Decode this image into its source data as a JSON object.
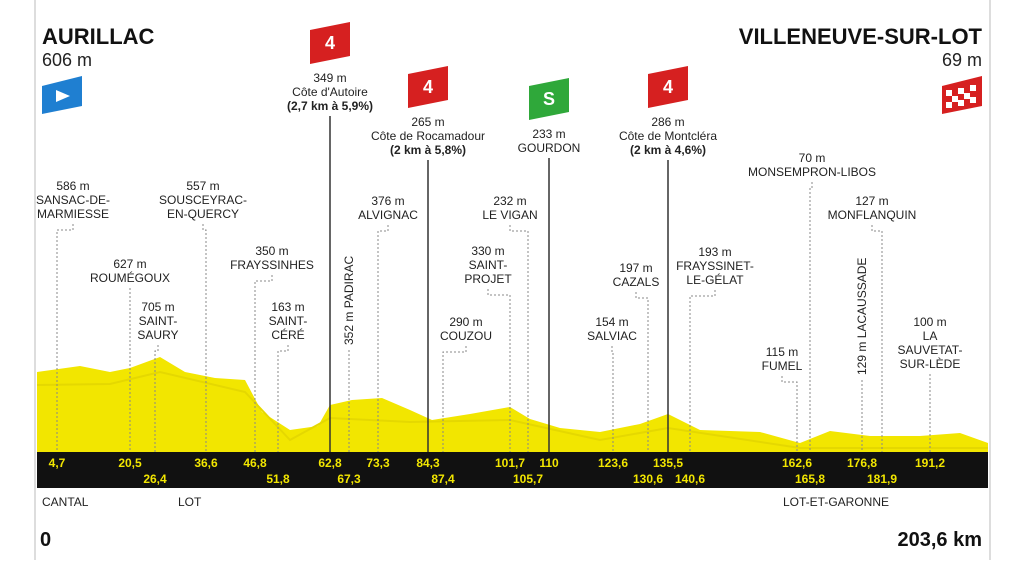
{
  "start": {
    "name": "AURILLAC",
    "elevation": "606 m",
    "km": "0",
    "region": "CANTAL"
  },
  "finish": {
    "name": "VILLENEUVE-SUR-LOT",
    "elevation": "69 m",
    "km": "203,6 km"
  },
  "regions": [
    "LOT",
    "LOT-ET-GARONNE"
  ],
  "waypoints": [
    {
      "km": "4,7",
      "elevation": "586 m",
      "name": [
        "SANSAC-DE-",
        "MARMIESSE"
      ]
    },
    {
      "km": "20,5",
      "elevation": "627 m",
      "name": [
        "ROUMÉGOUX"
      ]
    },
    {
      "km": "26,4",
      "elevation": "705 m",
      "name": [
        "SAINT-",
        "SAURY"
      ]
    },
    {
      "km": "36,6",
      "elevation": "557 m",
      "name": [
        "SOUSCEYRAC-",
        "EN-QUERCY"
      ]
    },
    {
      "km": "46,8",
      "elevation": "350 m",
      "name": [
        "FRAYSSINHES"
      ]
    },
    {
      "km": "51,8",
      "elevation": "163 m",
      "name": [
        "SAINT-",
        "CÉRÉ"
      ]
    },
    {
      "km": "62,8",
      "elevation": "349 m",
      "name": [
        "Côte d'Autoire"
      ],
      "detail": "(2,7 km à 5,9%)",
      "badge": "4"
    },
    {
      "km": "67,3",
      "elevation": "352 m",
      "name": [
        "PADIRAC"
      ]
    },
    {
      "km": "73,3",
      "elevation": "376 m",
      "name": [
        "ALVIGNAC"
      ]
    },
    {
      "km": "84,3",
      "elevation": "265 m",
      "name": [
        "Côte de Rocamadour"
      ],
      "detail": "(2 km à 5,8%)",
      "badge": "4"
    },
    {
      "km": "87,4",
      "elevation": "290 m",
      "name": [
        "COUZOU"
      ]
    },
    {
      "km": "101,7",
      "elevation": "330 m",
      "name": [
        "SAINT-",
        "PROJET"
      ]
    },
    {
      "km": "105,7",
      "elevation": "232 m",
      "name": [
        "LE VIGAN"
      ]
    },
    {
      "km": "110",
      "elevation": "233 m",
      "name": [
        "GOURDON"
      ],
      "badge": "S"
    },
    {
      "km": "123,6",
      "elevation": "154 m",
      "name": [
        "SALVIAC"
      ]
    },
    {
      "km": "130,6",
      "elevation": "197 m",
      "name": [
        "CAZALS"
      ]
    },
    {
      "km": "135,5",
      "elevation": "286 m",
      "name": [
        "Côte de Montcléra"
      ],
      "detail": "(2 km à 4,6%)",
      "badge": "4"
    },
    {
      "km": "140,6",
      "elevation": "193 m",
      "name": [
        "FRAYSSINET-",
        "LE-GÉLAT"
      ]
    },
    {
      "km": "162,6",
      "elevation": "115 m",
      "name": [
        "FUMEL"
      ]
    },
    {
      "km": "165,8",
      "elevation": "70 m",
      "name": [
        "MONSEMPRON-LIBOS"
      ]
    },
    {
      "km": "176,8",
      "elevation": "129 m",
      "name": [
        "LACAUSSADE"
      ]
    },
    {
      "km": "181,9",
      "elevation": "127 m",
      "name": [
        "MONFLANQUIN"
      ]
    },
    {
      "km": "191,2",
      "elevation": "100 m",
      "name": [
        "LA",
        "SAUVETAT-",
        "SUR-LÈDE"
      ]
    }
  ]
}
